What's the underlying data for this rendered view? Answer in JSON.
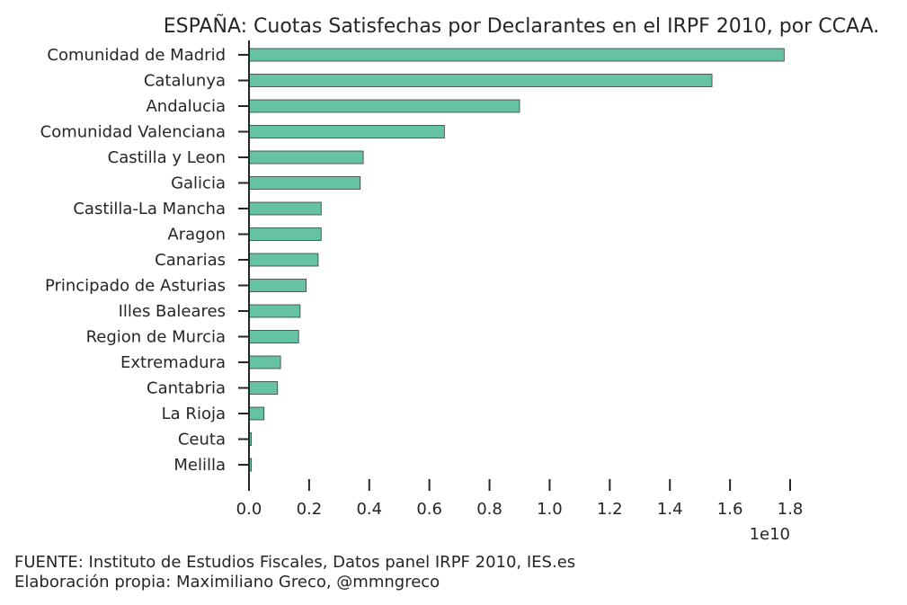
{
  "chart_data": {
    "type": "bar",
    "orientation": "horizontal",
    "title": "ESPAÑA: Cuotas Satisfechas por Declarantes en el IRPF 2010, por CCAA.",
    "xlabel": "",
    "ylabel": "",
    "offset_label": "1e10",
    "xlim": [
      0,
      1.8
    ],
    "xticks": [
      "0.0",
      "0.2",
      "0.4",
      "0.6",
      "0.8",
      "1.0",
      "1.2",
      "1.4",
      "1.6",
      "1.8"
    ],
    "grid": false,
    "bar_color": "#66c2a5",
    "edge_color": "#3a3a3a",
    "categories": [
      "Comunidad de Madrid",
      "Catalunya",
      "Andalucia",
      "Comunidad Valenciana",
      "Castilla y Leon",
      "Galicia",
      "Castilla-La Mancha",
      "Aragon",
      "Canarias",
      "Principado de Asturias",
      "Illes Baleares",
      "Region de Murcia",
      "Extremadura",
      "Cantabria",
      "La Rioja",
      "Ceuta",
      "Melilla"
    ],
    "values": [
      1.78,
      1.54,
      0.9,
      0.65,
      0.38,
      0.37,
      0.24,
      0.24,
      0.23,
      0.19,
      0.17,
      0.165,
      0.105,
      0.095,
      0.05,
      0.008,
      0.008
    ]
  },
  "footer": {
    "source": "FUENTE: Instituto de Estudios Fiscales, Datos panel IRPF 2010, IES.es",
    "credit": "Elaboración propia: Maximiliano Greco, @mmngreco"
  }
}
